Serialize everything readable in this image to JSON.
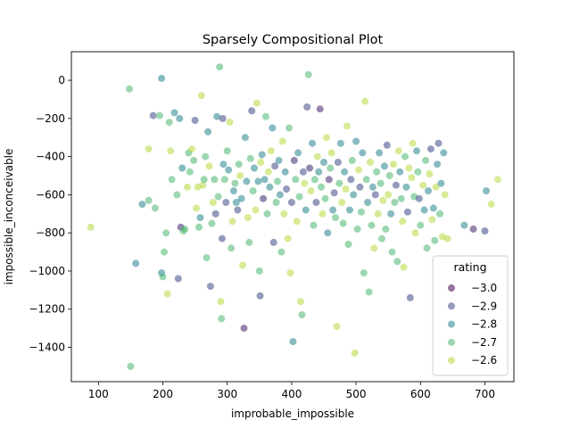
{
  "chart_data": {
    "type": "scatter",
    "title": "Sparsely Compositional Plot",
    "xlabel": "improbable_impossible",
    "ylabel": "impossible_inconceivable",
    "xlim": [
      58,
      745
    ],
    "ylim": [
      -1580,
      150
    ],
    "xticks": [
      100,
      200,
      300,
      400,
      500,
      600,
      700
    ],
    "yticks": [
      -1400,
      -1200,
      -1000,
      -800,
      -600,
      -400,
      -200,
      0
    ],
    "xtick_labels": [
      "100",
      "200",
      "300",
      "400",
      "500",
      "600",
      "700"
    ],
    "ytick_labels": [
      "−1400",
      "−1200",
      "−1000",
      "−800",
      "−600",
      "−400",
      "−200",
      "0"
    ],
    "colormap": "viridis",
    "color_range": [
      -3.0,
      -2.55
    ],
    "marker_alpha": 0.55,
    "legend": {
      "title": "rating",
      "placement": "lower-right",
      "entries": [
        {
          "label": "−3.0",
          "value": -3.0
        },
        {
          "label": "−2.9",
          "value": -2.9
        },
        {
          "label": "−2.8",
          "value": -2.8
        },
        {
          "label": "−2.7",
          "value": -2.7
        },
        {
          "label": "−2.6",
          "value": -2.6
        }
      ]
    },
    "points": [
      [
        88,
        -770,
        -2.6
      ],
      [
        150,
        -1500,
        -2.7
      ],
      [
        148,
        -45,
        -2.7
      ],
      [
        158,
        -960,
        -2.8
      ],
      [
        168,
        -650,
        -2.8
      ],
      [
        178,
        -630,
        -2.7
      ],
      [
        178,
        -360,
        -2.6
      ],
      [
        185,
        -185,
        -2.9
      ],
      [
        188,
        -670,
        -2.7
      ],
      [
        195,
        -185,
        -2.7
      ],
      [
        198,
        10,
        -2.8
      ],
      [
        198,
        -1010,
        -2.8
      ],
      [
        200,
        -1030,
        -2.7
      ],
      [
        202,
        -900,
        -2.7
      ],
      [
        205,
        -800,
        -2.7
      ],
      [
        207,
        -1120,
        -2.6
      ],
      [
        210,
        -220,
        -2.7
      ],
      [
        212,
        -370,
        -2.6
      ],
      [
        214,
        -520,
        -2.7
      ],
      [
        218,
        -170,
        -2.8
      ],
      [
        222,
        -600,
        -2.7
      ],
      [
        224,
        -1040,
        -2.9
      ],
      [
        226,
        -200,
        -2.8
      ],
      [
        228,
        -770,
        -2.95
      ],
      [
        230,
        -460,
        -2.8
      ],
      [
        232,
        -790,
        -2.7
      ],
      [
        234,
        -780,
        -2.7
      ],
      [
        238,
        -560,
        -2.6
      ],
      [
        240,
        -380,
        -2.7
      ],
      [
        242,
        -480,
        -2.7
      ],
      [
        245,
        -360,
        -2.6
      ],
      [
        248,
        -420,
        -2.7
      ],
      [
        250,
        -210,
        -2.9
      ],
      [
        252,
        -670,
        -2.6
      ],
      [
        254,
        -560,
        -2.6
      ],
      [
        256,
        -770,
        -2.7
      ],
      [
        258,
        -720,
        -2.8
      ],
      [
        260,
        -80,
        -2.6
      ],
      [
        262,
        -550,
        -2.6
      ],
      [
        264,
        -520,
        -2.7
      ],
      [
        266,
        -400,
        -2.7
      ],
      [
        268,
        -930,
        -2.7
      ],
      [
        270,
        -270,
        -2.8
      ],
      [
        272,
        -450,
        -2.6
      ],
      [
        274,
        -1080,
        -2.9
      ],
      [
        276,
        -750,
        -2.7
      ],
      [
        278,
        -640,
        -2.6
      ],
      [
        280,
        -520,
        -2.7
      ],
      [
        282,
        -700,
        -2.9
      ],
      [
        284,
        -190,
        -2.8
      ],
      [
        286,
        -610,
        -2.7
      ],
      [
        288,
        70,
        -2.7
      ],
      [
        290,
        -1160,
        -2.6
      ],
      [
        291,
        -1250,
        -2.7
      ],
      [
        292,
        -830,
        -2.9
      ],
      [
        293,
        -200,
        -2.9
      ],
      [
        294,
        -440,
        -2.8
      ],
      [
        296,
        -520,
        -2.7
      ],
      [
        298,
        -640,
        -2.9
      ],
      [
        300,
        -370,
        -2.7
      ],
      [
        302,
        -470,
        -2.8
      ],
      [
        304,
        -220,
        -2.6
      ],
      [
        306,
        -880,
        -2.7
      ],
      [
        308,
        -740,
        -2.6
      ],
      [
        310,
        -580,
        -2.8
      ],
      [
        312,
        -540,
        -2.7
      ],
      [
        314,
        -640,
        -2.8
      ],
      [
        316,
        -680,
        -2.9
      ],
      [
        318,
        -440,
        -2.7
      ],
      [
        320,
        -500,
        -2.6
      ],
      [
        322,
        -620,
        -2.8
      ],
      [
        324,
        -970,
        -2.6
      ],
      [
        326,
        -1300,
        -2.95
      ],
      [
        328,
        -300,
        -2.8
      ],
      [
        330,
        -530,
        -2.8
      ],
      [
        332,
        -720,
        -2.6
      ],
      [
        334,
        -850,
        -2.7
      ],
      [
        336,
        -410,
        -2.7
      ],
      [
        338,
        -160,
        -2.9
      ],
      [
        340,
        -580,
        -2.7
      ],
      [
        342,
        -460,
        -2.8
      ],
      [
        344,
        -680,
        -2.6
      ],
      [
        346,
        -120,
        -2.6
      ],
      [
        348,
        -530,
        -2.8
      ],
      [
        350,
        -1000,
        -2.7
      ],
      [
        351,
        -1130,
        -2.9
      ],
      [
        352,
        -430,
        -2.6
      ],
      [
        354,
        -390,
        -2.8
      ],
      [
        356,
        -620,
        -2.95
      ],
      [
        358,
        -520,
        -2.8
      ],
      [
        360,
        -190,
        -2.7
      ],
      [
        362,
        -700,
        -2.7
      ],
      [
        364,
        -480,
        -2.6
      ],
      [
        366,
        -560,
        -2.8
      ],
      [
        368,
        -370,
        -2.6
      ],
      [
        370,
        -250,
        -2.8
      ],
      [
        372,
        -850,
        -2.9
      ],
      [
        374,
        -450,
        -2.9
      ],
      [
        376,
        -640,
        -2.7
      ],
      [
        378,
        -530,
        -2.7
      ],
      [
        380,
        -420,
        -2.8
      ],
      [
        382,
        -600,
        -2.8
      ],
      [
        384,
        -900,
        -2.7
      ],
      [
        386,
        -320,
        -2.6
      ],
      [
        388,
        -700,
        -2.6
      ],
      [
        390,
        -480,
        -2.8
      ],
      [
        392,
        -570,
        -2.9
      ],
      [
        394,
        -830,
        -2.6
      ],
      [
        396,
        -250,
        -2.7
      ],
      [
        398,
        -1010,
        -2.6
      ],
      [
        400,
        -640,
        -2.9
      ],
      [
        402,
        -1370,
        -2.8
      ],
      [
        404,
        -420,
        -2.95
      ],
      [
        406,
        -520,
        -2.7
      ],
      [
        408,
        -740,
        -2.6
      ],
      [
        410,
        -380,
        -2.8
      ],
      [
        412,
        -610,
        -2.7
      ],
      [
        414,
        -1160,
        -2.6
      ],
      [
        416,
        -1230,
        -2.7
      ],
      [
        418,
        -480,
        -2.9
      ],
      [
        420,
        -540,
        -2.6
      ],
      [
        422,
        -680,
        -2.8
      ],
      [
        424,
        -140,
        -2.9
      ],
      [
        426,
        30,
        -2.7
      ],
      [
        428,
        -460,
        -2.95
      ],
      [
        430,
        -580,
        -2.6
      ],
      [
        432,
        -330,
        -2.8
      ],
      [
        434,
        -760,
        -2.7
      ],
      [
        436,
        -520,
        -2.7
      ],
      [
        438,
        -640,
        -2.9
      ],
      [
        440,
        -400,
        -2.6
      ],
      [
        442,
        -480,
        -2.8
      ],
      [
        444,
        -150,
        -2.95
      ],
      [
        446,
        -560,
        -2.7
      ],
      [
        448,
        -700,
        -2.6
      ],
      [
        450,
        -430,
        -2.8
      ],
      [
        452,
        -620,
        -2.7
      ],
      [
        454,
        -300,
        -2.6
      ],
      [
        456,
        -800,
        -2.8
      ],
      [
        458,
        -520,
        -2.95
      ],
      [
        460,
        -460,
        -2.7
      ],
      [
        462,
        -380,
        -2.6
      ],
      [
        464,
        -680,
        -2.8
      ],
      [
        466,
        -590,
        -2.9
      ],
      [
        468,
        -720,
        -2.7
      ],
      [
        470,
        -1290,
        -2.6
      ],
      [
        472,
        -430,
        -2.9
      ],
      [
        474,
        -540,
        -2.7
      ],
      [
        476,
        -330,
        -2.8
      ],
      [
        478,
        -640,
        -2.6
      ],
      [
        480,
        -750,
        -2.7
      ],
      [
        482,
        -480,
        -2.8
      ],
      [
        484,
        -570,
        -2.6
      ],
      [
        486,
        -240,
        -2.6
      ],
      [
        488,
        -860,
        -2.7
      ],
      [
        490,
        -680,
        -2.8
      ],
      [
        492,
        -520,
        -2.9
      ],
      [
        494,
        -420,
        -2.7
      ],
      [
        496,
        -600,
        -2.8
      ],
      [
        498,
        -1430,
        -2.6
      ],
      [
        500,
        -320,
        -2.8
      ],
      [
        502,
        -780,
        -2.7
      ],
      [
        504,
        -470,
        -2.6
      ],
      [
        506,
        -560,
        -2.9
      ],
      [
        508,
        -690,
        -2.7
      ],
      [
        510,
        -380,
        -2.8
      ],
      [
        512,
        -1010,
        -2.7
      ],
      [
        514,
        -110,
        -2.6
      ],
      [
        516,
        -520,
        -2.7
      ],
      [
        518,
        -640,
        -2.8
      ],
      [
        520,
        -1110,
        -2.7
      ],
      [
        522,
        -430,
        -2.6
      ],
      [
        524,
        -760,
        -2.7
      ],
      [
        526,
        -560,
        -2.8
      ],
      [
        528,
        -880,
        -2.6
      ],
      [
        530,
        -600,
        -2.9
      ],
      [
        532,
        -480,
        -2.7
      ],
      [
        534,
        -700,
        -2.6
      ],
      [
        536,
        -380,
        -2.8
      ],
      [
        538,
        -540,
        -2.7
      ],
      [
        540,
        -830,
        -2.7
      ],
      [
        542,
        -630,
        -2.6
      ],
      [
        544,
        -450,
        -2.8
      ],
      [
        546,
        -780,
        -2.7
      ],
      [
        548,
        -340,
        -2.9
      ],
      [
        550,
        -600,
        -2.6
      ],
      [
        552,
        -500,
        -2.7
      ],
      [
        554,
        -700,
        -2.8
      ],
      [
        556,
        -900,
        -2.7
      ],
      [
        558,
        -440,
        -2.6
      ],
      [
        560,
        -640,
        -2.7
      ],
      [
        562,
        -550,
        -2.9
      ],
      [
        564,
        -950,
        -2.7
      ],
      [
        566,
        -370,
        -2.6
      ],
      [
        568,
        -480,
        -2.8
      ],
      [
        570,
        -620,
        -2.7
      ],
      [
        572,
        -740,
        -2.6
      ],
      [
        574,
        -980,
        -2.6
      ],
      [
        576,
        -400,
        -2.7
      ],
      [
        578,
        -560,
        -2.8
      ],
      [
        580,
        -690,
        -2.9
      ],
      [
        582,
        -460,
        -2.6
      ],
      [
        584,
        -1140,
        -2.9
      ],
      [
        586,
        -510,
        -2.6
      ],
      [
        588,
        -330,
        -2.6
      ],
      [
        590,
        -610,
        -2.7
      ],
      [
        592,
        -800,
        -2.6
      ],
      [
        594,
        -370,
        -2.8
      ],
      [
        596,
        -480,
        -2.7
      ],
      [
        598,
        -620,
        -2.9
      ],
      [
        600,
        -760,
        -2.7
      ],
      [
        604,
        -550,
        -2.6
      ],
      [
        606,
        -680,
        -2.8
      ],
      [
        608,
        -420,
        -2.7
      ],
      [
        610,
        -880,
        -2.7
      ],
      [
        612,
        -580,
        -2.8
      ],
      [
        614,
        -490,
        -2.6
      ],
      [
        616,
        -360,
        -2.9
      ],
      [
        618,
        -730,
        -2.6
      ],
      [
        620,
        -670,
        -2.8
      ],
      [
        622,
        -840,
        -2.7
      ],
      [
        624,
        -560,
        -2.6
      ],
      [
        626,
        -440,
        -2.8
      ],
      [
        628,
        -330,
        -2.9
      ],
      [
        630,
        -700,
        -2.7
      ],
      [
        632,
        -540,
        -2.8
      ],
      [
        634,
        -820,
        -2.6
      ],
      [
        636,
        -380,
        -2.8
      ],
      [
        638,
        -600,
        -2.6
      ],
      [
        642,
        -830,
        -2.6
      ],
      [
        668,
        -760,
        -2.8
      ],
      [
        682,
        -780,
        -2.95
      ],
      [
        700,
        -790,
        -2.9
      ],
      [
        702,
        -580,
        -2.8
      ],
      [
        710,
        -650,
        -2.6
      ],
      [
        720,
        -520,
        -2.6
      ]
    ]
  }
}
